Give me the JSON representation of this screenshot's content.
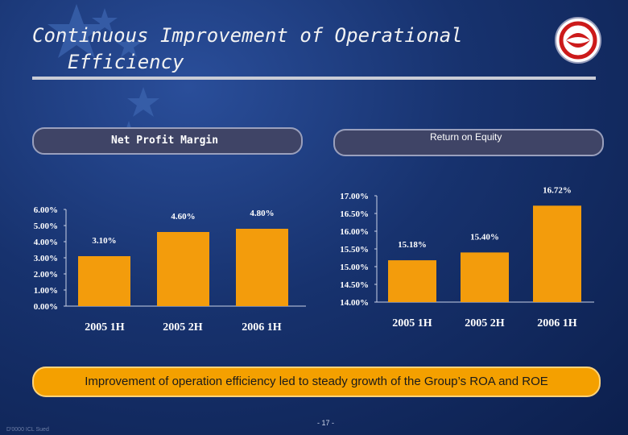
{
  "slide": {
    "title_line1": "Continuous Improvement of Operational",
    "title_line2": "Efficiency",
    "logo_icon": "company-logo-icon",
    "banner_text": "Improvement of operation efficiency led to steady growth of the Group’s ROA and  ROE",
    "footer_left": "D'0000 ICL Sued",
    "page_number": "- 17 -",
    "colors": {
      "bar": "#f39c0c",
      "accent": "#cc1a1a"
    }
  },
  "chart_data": [
    {
      "type": "bar",
      "title": "Net Profit Margin",
      "categories": [
        "2005 1H",
        "2005 2H",
        "2006 1H"
      ],
      "values": [
        3.1,
        4.6,
        4.8
      ],
      "data_labels": [
        "3.10%",
        "4.60%",
        "4.80%"
      ],
      "y_ticks": [
        "6.00%",
        "5.00%",
        "4.00%",
        "3.00%",
        "2.00%",
        "1.00%",
        "0.00%"
      ],
      "ylim": [
        0,
        6
      ],
      "xlabel": "",
      "ylabel": ""
    },
    {
      "type": "bar",
      "title": "Return on Equity",
      "categories": [
        "2005 1H",
        "2005 2H",
        "2006 1H"
      ],
      "values": [
        15.18,
        15.4,
        16.72
      ],
      "data_labels": [
        "15.18%",
        "15.40%",
        "16.72%"
      ],
      "y_ticks": [
        "17.00%",
        "16.50%",
        "16.00%",
        "15.50%",
        "15.00%",
        "14.50%",
        "14.00%"
      ],
      "ylim": [
        14,
        17
      ],
      "xlabel": "",
      "ylabel": ""
    }
  ]
}
